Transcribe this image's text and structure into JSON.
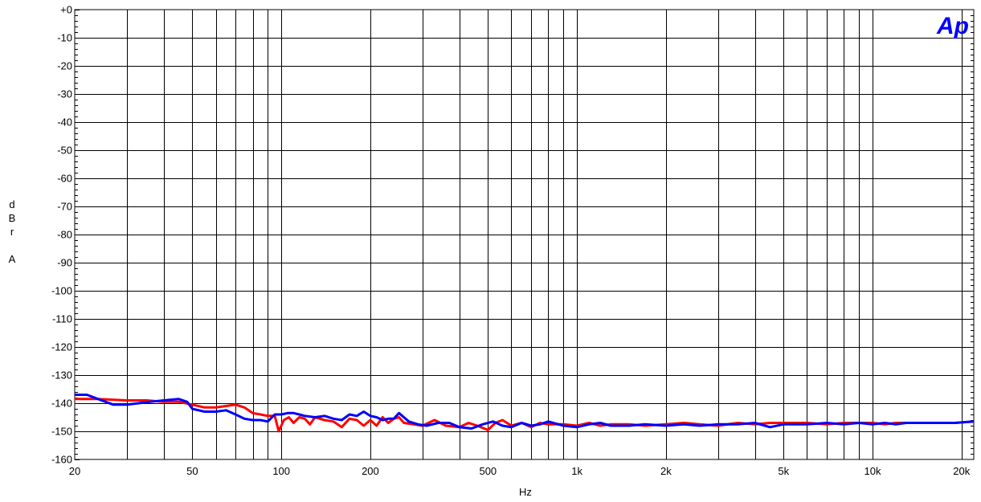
{
  "chart_data": {
    "type": "line",
    "logo": "Ap",
    "xlabel": "Hz",
    "ylabel": [
      "d",
      "B",
      "r",
      "",
      "A"
    ],
    "xscale": "log",
    "xlim": [
      20,
      22000
    ],
    "ylim": [
      -160,
      0
    ],
    "grid": true,
    "x_ticks": [
      {
        "v": 20,
        "label": "20"
      },
      {
        "v": 50,
        "label": "50"
      },
      {
        "v": 100,
        "label": "100"
      },
      {
        "v": 200,
        "label": "200"
      },
      {
        "v": 500,
        "label": "500"
      },
      {
        "v": 1000,
        "label": "1k"
      },
      {
        "v": 2000,
        "label": "2k"
      },
      {
        "v": 5000,
        "label": "5k"
      },
      {
        "v": 10000,
        "label": "10k"
      },
      {
        "v": 20000,
        "label": "20k"
      }
    ],
    "y_ticks": [
      {
        "v": 0,
        "label": "+0"
      },
      {
        "v": -10,
        "label": "-10"
      },
      {
        "v": -20,
        "label": "-20"
      },
      {
        "v": -30,
        "label": "-30"
      },
      {
        "v": -40,
        "label": "-40"
      },
      {
        "v": -50,
        "label": "-50"
      },
      {
        "v": -60,
        "label": "-60"
      },
      {
        "v": -70,
        "label": "-70"
      },
      {
        "v": -80,
        "label": "-80"
      },
      {
        "v": -90,
        "label": "-90"
      },
      {
        "v": -100,
        "label": "-100"
      },
      {
        "v": -110,
        "label": "-110"
      },
      {
        "v": -120,
        "label": "-120"
      },
      {
        "v": -130,
        "label": "-130"
      },
      {
        "v": -140,
        "label": "-140"
      },
      {
        "v": -150,
        "label": "-150"
      },
      {
        "v": -160,
        "label": "-160"
      }
    ],
    "series": [
      {
        "color": "#ff0000",
        "x": [
          20,
          24,
          30,
          35,
          40,
          45,
          50,
          55,
          60,
          65,
          70,
          75,
          80,
          85,
          90,
          95,
          98,
          102,
          106,
          110,
          115,
          120,
          125,
          130,
          140,
          150,
          160,
          170,
          180,
          190,
          200,
          210,
          220,
          230,
          240,
          250,
          260,
          280,
          300,
          330,
          360,
          400,
          430,
          460,
          500,
          530,
          560,
          600,
          650,
          700,
          750,
          800,
          900,
          1000,
          1100,
          1200,
          1300,
          1500,
          1700,
          2000,
          2300,
          2600,
          3000,
          3500,
          4000,
          4500,
          5000,
          6000,
          7000,
          8000,
          9000,
          10000,
          11000,
          12000,
          13000,
          15000,
          17000,
          19000,
          22000
        ],
        "y": [
          -138.5,
          -138.5,
          -139,
          -139,
          -139.5,
          -139.5,
          -140.5,
          -141.5,
          -141.5,
          -141,
          -140.5,
          -141.5,
          -143.5,
          -144,
          -144.5,
          -144.5,
          -150,
          -146,
          -145,
          -147,
          -145,
          -145.5,
          -147.5,
          -145,
          -146,
          -146.5,
          -148.5,
          -145.5,
          -146,
          -148,
          -146,
          -148,
          -145,
          -147,
          -145.5,
          -145,
          -147,
          -147.5,
          -148,
          -146,
          -148,
          -148.5,
          -147,
          -148,
          -149.5,
          -147,
          -146,
          -148,
          -147,
          -148.5,
          -147,
          -147.5,
          -147.5,
          -148,
          -147,
          -148,
          -147.5,
          -147.5,
          -148,
          -147.5,
          -147,
          -147.5,
          -148,
          -147,
          -147.5,
          -147,
          -147,
          -147,
          -147.5,
          -147,
          -147,
          -147,
          -147.5,
          -147,
          -147,
          -147,
          -147,
          -147,
          -146.5
        ]
      },
      {
        "color": "#0000ff",
        "x": [
          20,
          22,
          24,
          27,
          30,
          33,
          36,
          40,
          45,
          48,
          50,
          55,
          60,
          65,
          70,
          75,
          80,
          85,
          90,
          95,
          100,
          105,
          110,
          115,
          120,
          130,
          140,
          150,
          160,
          170,
          180,
          190,
          200,
          210,
          220,
          230,
          240,
          250,
          270,
          290,
          310,
          340,
          370,
          400,
          440,
          480,
          520,
          560,
          600,
          650,
          700,
          750,
          800,
          900,
          1000,
          1100,
          1200,
          1300,
          1500,
          1700,
          2000,
          2300,
          2600,
          3000,
          3500,
          4000,
          4500,
          5000,
          6000,
          7000,
          8000,
          9000,
          10000,
          11000,
          12000,
          13000,
          15000,
          17000,
          19000,
          22000
        ],
        "y": [
          -137,
          -137,
          -138.5,
          -140.5,
          -140.5,
          -140,
          -139.5,
          -139,
          -138.5,
          -139.5,
          -142,
          -143,
          -143,
          -142.5,
          -144,
          -145.5,
          -146,
          -146,
          -146.5,
          -144,
          -144,
          -143.5,
          -143.5,
          -144,
          -144.5,
          -145,
          -144.5,
          -145.5,
          -146,
          -144,
          -144.5,
          -143,
          -144.5,
          -145,
          -146,
          -145.5,
          -145.5,
          -143.5,
          -146.5,
          -147.5,
          -148,
          -147,
          -147,
          -148.5,
          -149,
          -147.5,
          -146.5,
          -148,
          -148.5,
          -147,
          -148,
          -147.5,
          -146.5,
          -148,
          -148.5,
          -147.5,
          -147,
          -148,
          -148,
          -147.5,
          -148,
          -147.5,
          -148,
          -147.5,
          -147.5,
          -147,
          -148.5,
          -147.5,
          -147.5,
          -147,
          -147.5,
          -147,
          -147.5,
          -147,
          -147.5,
          -147,
          -147,
          -147,
          -147,
          -146.5
        ]
      }
    ]
  }
}
